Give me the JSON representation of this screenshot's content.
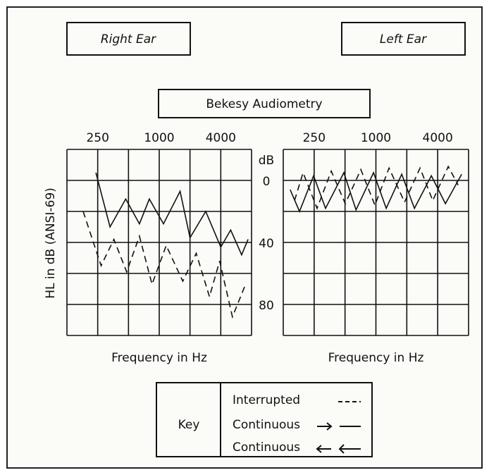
{
  "title": "Bekesy Audiometry",
  "key": {
    "title": "Key",
    "entries": [
      "Interrupted",
      "Continuous",
      "Continuous"
    ]
  },
  "chart_data": [
    {
      "type": "line",
      "title": "Right Ear",
      "xlabel": "Frequency in Hz",
      "ylabel": "HL in dB (ANSI-69)",
      "yunit": "dB",
      "log_x": true,
      "xlim": [
        125,
        8000
      ],
      "xticks": [
        250,
        1000,
        4000
      ],
      "xgrid": [
        125,
        250,
        500,
        1000,
        2000,
        4000,
        8000
      ],
      "ylim": [
        -20,
        100
      ],
      "y_inverted": true,
      "yticks": [
        0,
        40,
        80
      ],
      "ygrid": [
        -20,
        0,
        20,
        40,
        60,
        80,
        100
      ],
      "series": [
        {
          "style": "solid",
          "color": "#111111",
          "x": [
            240,
            330,
            470,
            640,
            800,
            1100,
            1600,
            2000,
            2850,
            4000,
            5000,
            6400,
            7400
          ],
          "values": [
            -5,
            30,
            12,
            28,
            12,
            28,
            7,
            37,
            20,
            43,
            32,
            48,
            38
          ]
        },
        {
          "style": "dashed",
          "color": "#111111",
          "x": [
            180,
            270,
            360,
            480,
            640,
            850,
            1170,
            1700,
            2300,
            3100,
            3900,
            5200,
            6900
          ],
          "values": [
            20,
            55,
            38,
            59,
            36,
            67,
            42,
            65,
            47,
            75,
            52,
            88,
            68
          ]
        }
      ]
    },
    {
      "type": "line",
      "title": "Left Ear",
      "xlabel": "Frequency in Hz",
      "log_x": true,
      "xlim": [
        125,
        8000
      ],
      "xticks": [
        250,
        1000,
        4000
      ],
      "xgrid": [
        125,
        250,
        500,
        1000,
        2000,
        4000,
        8000
      ],
      "ylim": [
        -20,
        100
      ],
      "y_inverted": true,
      "ygrid": [
        -20,
        0,
        20,
        40,
        60,
        80,
        100
      ],
      "series": [
        {
          "style": "solid",
          "color": "#111111",
          "x": [
            146,
            180,
            247,
            323,
            487,
            640,
            948,
            1260,
            1785,
            2374,
            3470,
            4760,
            6850
          ],
          "values": [
            6,
            20,
            -3,
            18,
            -5,
            19,
            -5,
            18,
            -4,
            18,
            -3,
            15,
            -4
          ]
        },
        {
          "style": "dashed",
          "color": "#111111",
          "x": [
            161,
            195,
            267,
            367,
            503,
            713,
            978,
            1343,
            1902,
            2694,
            3580,
            5070,
            6330
          ],
          "values": [
            13,
            -5,
            18,
            -6,
            15,
            -7,
            16,
            -8,
            14,
            -8,
            13,
            -9,
            3
          ]
        }
      ]
    }
  ]
}
